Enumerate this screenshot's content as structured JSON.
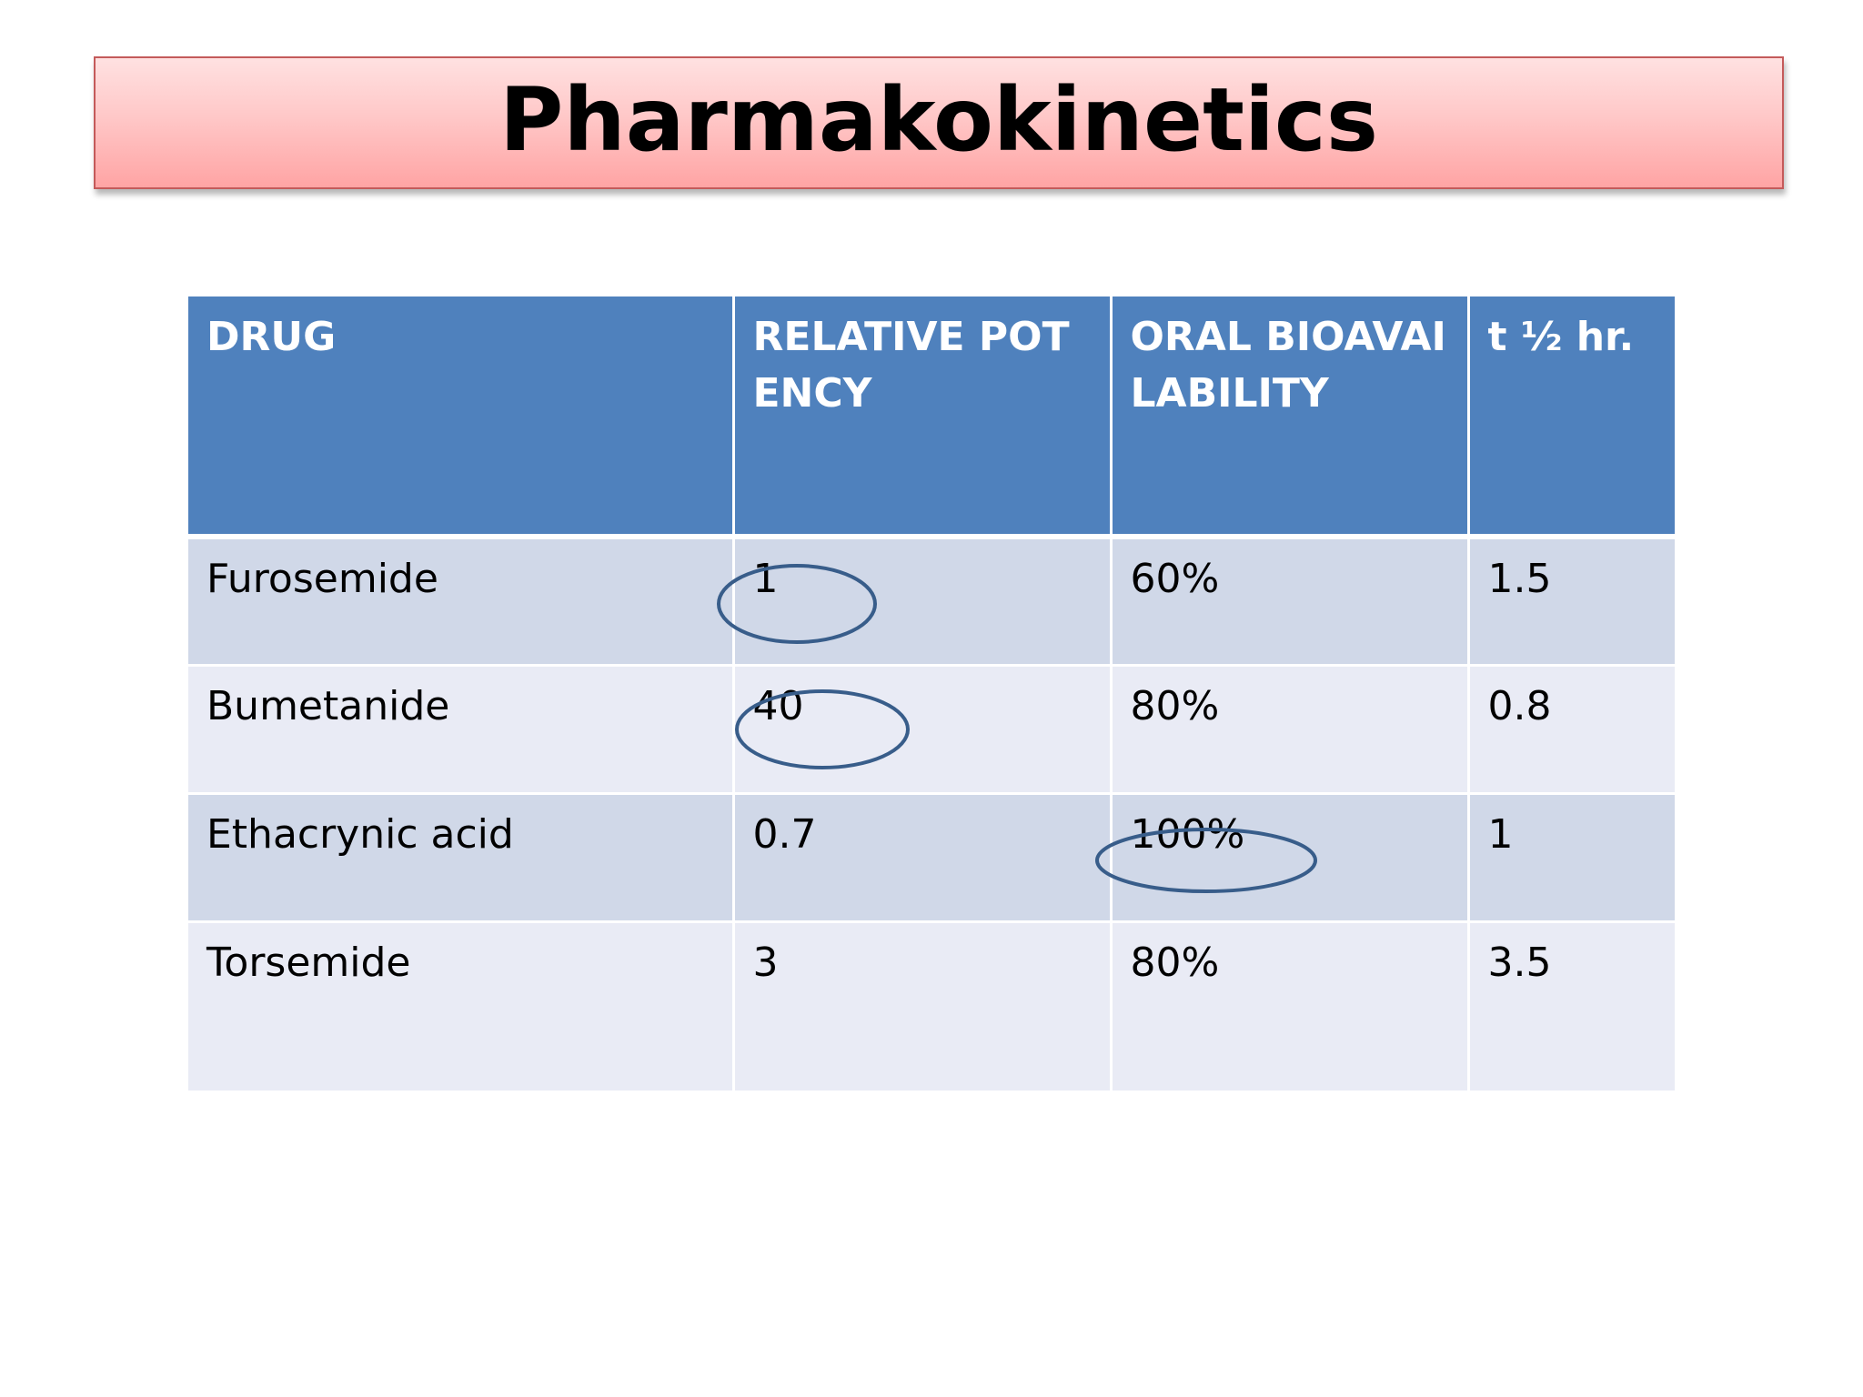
{
  "title": "Pharmakokinetics",
  "table": {
    "headers": [
      "DRUG",
      "RELATIVE POTENCY",
      "ORAL BIOAVAILABILITY",
      "t ½  hr."
    ],
    "rows": [
      [
        "Furosemide",
        "1",
        "60%",
        "1.5"
      ],
      [
        "Bumetanide",
        "40",
        "80%",
        "0.8"
      ],
      [
        "Ethacrynic acid",
        "0.7",
        "100%",
        "1"
      ],
      [
        "Torsemide",
        "3",
        "80%",
        "3.5"
      ]
    ]
  },
  "colors": {
    "header_fill": "#4f81bd",
    "row_band_dark": "#d0d8e8",
    "row_band_light": "#e9ebf5",
    "banner_fill": "#ffb6b6",
    "circle_stroke": "#385d8a"
  }
}
